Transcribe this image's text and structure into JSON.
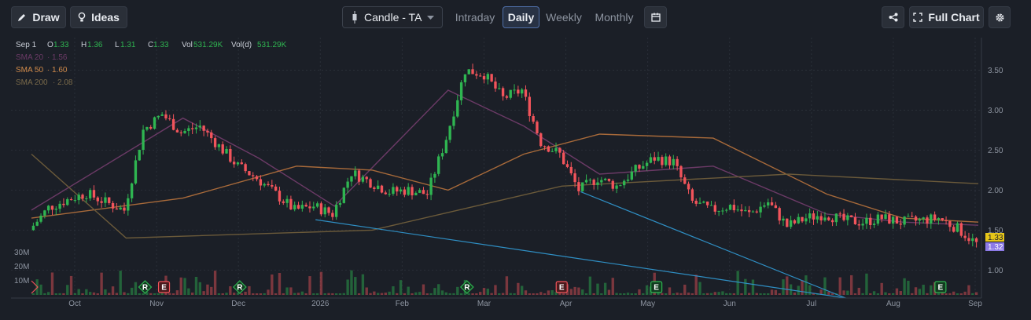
{
  "toolbar": {
    "draw_label": "Draw",
    "ideas_label": "Ideas",
    "chart_type_label": "Candle - TA",
    "timeframes": [
      "Intraday",
      "Daily",
      "Weekly",
      "Monthly"
    ],
    "active_timeframe": "Daily",
    "full_chart_label": "Full Chart"
  },
  "legend": {
    "date": "Sep 1",
    "o_label": "O",
    "o_value": "1.33",
    "h_label": "H",
    "h_value": "1.36",
    "l_label": "L",
    "l_value": "1.31",
    "c_label": "C",
    "c_value": "1.33",
    "vol_label": "Vol",
    "vol_value": "531.29K",
    "vold_label": "Vol(d)",
    "vold_value": "531.29K",
    "sma20_label": "SMA 20",
    "sma20_value": "1.56",
    "sma50_label": "SMA 50",
    "sma50_value": "1.60",
    "sma200_label": "SMA 200",
    "sma200_value": "2.08"
  },
  "colors": {
    "up": "#2fb551",
    "down": "#f2545b",
    "sma20": "#6b3a66",
    "sma50": "#a86a3a",
    "sma200": "#6b5a3a",
    "trendline": "#2f8fc4",
    "grid": "#2a2f38",
    "last_price_bg": "#e6c619",
    "last_price2_bg": "#8c7ae6"
  },
  "chart_data": {
    "type": "candlestick",
    "y_axis": {
      "ticks": [
        "1.00",
        "1.50",
        "2.00",
        "2.50",
        "3.00",
        "3.50"
      ],
      "ylim": [
        0.65,
        3.75
      ]
    },
    "x_axis": {
      "ticks": [
        "Oct",
        "Nov",
        "Dec",
        "2026",
        "Feb",
        "Mar",
        "Apr",
        "May",
        "Jun",
        "Jul",
        "Aug",
        "Sep"
      ]
    },
    "volume_axis": {
      "ticks": [
        "30M",
        "20M",
        "10M"
      ]
    },
    "last_price": "1.33",
    "last_price2": "1.32",
    "close_path": [
      [
        "Sep 15",
        1.5
      ],
      [
        "Sep 22",
        1.78
      ],
      [
        "Sep 29",
        1.88
      ],
      [
        "Oct 6",
        1.96
      ],
      [
        "Oct 13",
        1.85
      ],
      [
        "Oct 20",
        1.75
      ],
      [
        "Oct 27",
        2.75
      ],
      [
        "Nov 3",
        2.95
      ],
      [
        "Nov 10",
        2.72
      ],
      [
        "Nov 17",
        2.8
      ],
      [
        "Nov 24",
        2.55
      ],
      [
        "Dec 1",
        2.3
      ],
      [
        "Dec 8",
        2.15
      ],
      [
        "Dec 15",
        1.95
      ],
      [
        "Dec 22",
        1.75
      ],
      [
        "Dec 29",
        1.8
      ],
      [
        "Jan 5",
        1.7
      ],
      [
        "Jan 12",
        2.22
      ],
      [
        "Jan 19",
        2.1
      ],
      [
        "Jan 26",
        1.98
      ],
      [
        "Feb 2",
        2.0
      ],
      [
        "Feb 9",
        1.95
      ],
      [
        "Feb 16",
        2.65
      ],
      [
        "Feb 23",
        3.5
      ],
      [
        "Mar 2",
        3.45
      ],
      [
        "Mar 9",
        3.15
      ],
      [
        "Mar 16",
        3.25
      ],
      [
        "Mar 23",
        2.6
      ],
      [
        "Mar 30",
        2.45
      ],
      [
        "Apr 6",
        2.0
      ],
      [
        "Apr 13",
        2.15
      ],
      [
        "Apr 20",
        2.05
      ],
      [
        "Apr 27",
        2.25
      ],
      [
        "May 4",
        2.4
      ],
      [
        "May 11",
        2.35
      ],
      [
        "May 18",
        1.85
      ],
      [
        "May 25",
        1.75
      ],
      [
        "Jun 1",
        1.8
      ],
      [
        "Jun 8",
        1.7
      ],
      [
        "Jun 15",
        1.85
      ],
      [
        "Jun 22",
        1.55
      ],
      [
        "Jun 29",
        1.65
      ],
      [
        "Jul 6",
        1.7
      ],
      [
        "Jul 13",
        1.62
      ],
      [
        "Jul 20",
        1.6
      ],
      [
        "Jul 27",
        1.65
      ],
      [
        "Aug 3",
        1.6
      ],
      [
        "Aug 10",
        1.62
      ],
      [
        "Aug 17",
        1.65
      ],
      [
        "Aug 24",
        1.52
      ],
      [
        "Aug 31",
        1.33
      ]
    ],
    "series": [
      {
        "name": "SMA 20",
        "values": [
          [
            0,
            1.75
          ],
          [
            8,
            2.9
          ],
          [
            12,
            2.4
          ],
          [
            16,
            1.8
          ],
          [
            22,
            3.25
          ],
          [
            26,
            2.8
          ],
          [
            30,
            2.2
          ],
          [
            36,
            2.3
          ],
          [
            42,
            1.7
          ],
          [
            46,
            1.6
          ],
          [
            50,
            1.56
          ]
        ]
      },
      {
        "name": "SMA 50",
        "values": [
          [
            0,
            1.65
          ],
          [
            8,
            1.9
          ],
          [
            14,
            2.3
          ],
          [
            18,
            2.25
          ],
          [
            22,
            2.0
          ],
          [
            26,
            2.45
          ],
          [
            30,
            2.7
          ],
          [
            36,
            2.65
          ],
          [
            42,
            1.95
          ],
          [
            46,
            1.65
          ],
          [
            50,
            1.6
          ]
        ]
      },
      {
        "name": "SMA 200",
        "values": [
          [
            0,
            2.45
          ],
          [
            5,
            1.4
          ],
          [
            18,
            1.5
          ],
          [
            28,
            2.05
          ],
          [
            40,
            2.2
          ],
          [
            50,
            2.08
          ]
        ]
      }
    ],
    "trendlines": [
      {
        "from": [
          "Dec 29",
          1.63
        ],
        "to": [
          "Jul 13",
          0.65
        ]
      },
      {
        "from": [
          "Apr 6",
          1.98
        ],
        "to": [
          "Jul 13",
          0.65
        ]
      }
    ],
    "events": [
      {
        "label": "R",
        "kind": "dividend",
        "x": "Oct 27"
      },
      {
        "label": "E",
        "kind": "earnings-red",
        "x": "Nov 3"
      },
      {
        "label": "R",
        "kind": "dividend",
        "x": "Dec 1"
      },
      {
        "label": "R",
        "kind": "dividend",
        "x": "Feb 23"
      },
      {
        "label": "E",
        "kind": "earnings-red",
        "x": "Mar 30"
      },
      {
        "label": "E",
        "kind": "earnings-green",
        "x": "May 4"
      },
      {
        "label": "E",
        "kind": "earnings-green",
        "x": "Aug 17"
      }
    ]
  }
}
